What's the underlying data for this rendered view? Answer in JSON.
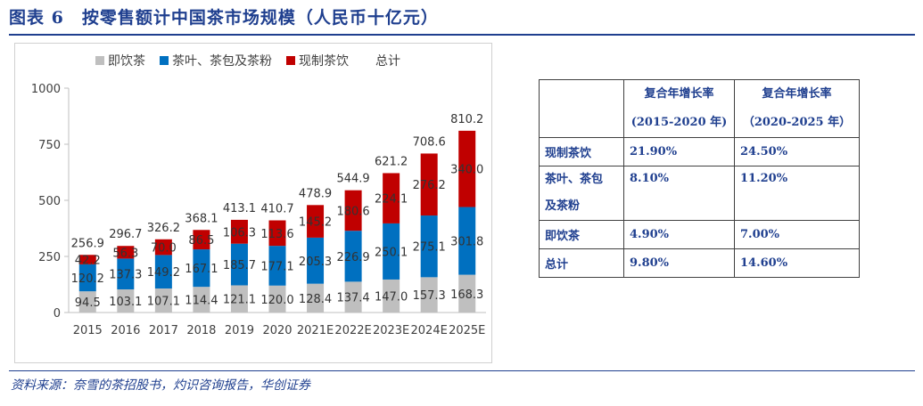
{
  "page": {
    "title": "图表 6　按零售额计中国茶市场规模（人民币十亿元）",
    "source": "资料来源：奈雪的茶招股书，灼识咨询报告，华创证券"
  },
  "colors": {
    "rtd_tea": "#bfbfbf",
    "leaf_tea": "#0070c0",
    "fresh_tea": "#c00000",
    "navy": "#1f3f8f"
  },
  "chart_data": {
    "type": "bar",
    "stacked": true,
    "title": "",
    "categories": [
      "2015",
      "2016",
      "2017",
      "2018",
      "2019",
      "2020",
      "2021E",
      "2022E",
      "2023E",
      "2024E",
      "2025E"
    ],
    "series": [
      {
        "name": "即饮茶",
        "color_key": "rtd_tea",
        "values": [
          94.5,
          103.1,
          107.1,
          114.4,
          121.1,
          120.0,
          128.4,
          137.4,
          147.0,
          157.3,
          168.3
        ]
      },
      {
        "name": "茶叶、茶包及茶粉",
        "color_key": "leaf_tea",
        "values": [
          120.2,
          137.3,
          149.2,
          167.1,
          185.7,
          177.1,
          205.3,
          226.9,
          250.1,
          275.1,
          301.8
        ]
      },
      {
        "name": "现制茶饮",
        "color_key": "fresh_tea",
        "values": [
          42.2,
          56.3,
          70.0,
          86.5,
          106.3,
          113.6,
          145.2,
          180.6,
          224.1,
          276.2,
          340.0
        ]
      }
    ],
    "totals_name": "总计",
    "totals": [
      256.9,
      296.7,
      326.2,
      368.1,
      413.1,
      410.7,
      478.9,
      544.9,
      621.2,
      708.6,
      810.2
    ],
    "ylim": [
      0,
      1000
    ],
    "yticks": [
      0,
      250,
      500,
      750,
      1000
    ],
    "xlabel": "",
    "ylabel": ""
  },
  "table": {
    "headers": [
      {
        "line1": "复合年增长率",
        "line2": "(2015-2020 年)"
      },
      {
        "line1": "复合年增长率",
        "line2": "（2020-2025 年）"
      }
    ],
    "rows": [
      {
        "label": "现制茶饮",
        "v1": "21.90%",
        "v2": "24.50%"
      },
      {
        "label_line1": "茶叶、茶包",
        "label_line2": "及茶粉",
        "v1": "8.10%",
        "v2": "11.20%"
      },
      {
        "label": "即饮茶",
        "v1": "4.90%",
        "v2": "7.00%"
      },
      {
        "label": "总计",
        "v1": "9.80%",
        "v2": "14.60%"
      }
    ]
  }
}
